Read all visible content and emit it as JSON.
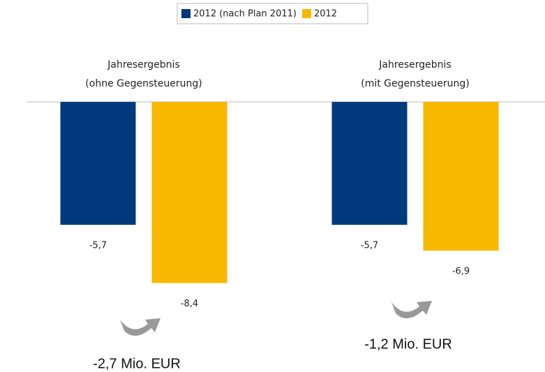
{
  "chart_data": {
    "type": "bar",
    "categories": [
      "Jahresergebnis\n(ohne Gegensteuerung)",
      "Jahresergebnis\n(mit Gegensteuerung)"
    ],
    "series": [
      {
        "name": "2012 (nach Plan 2011)",
        "color": "#003a7d",
        "values": [
          -5.7,
          -5.7
        ],
        "value_labels": [
          "-5,7",
          "-5,7"
        ]
      },
      {
        "name": "2012",
        "color": "#f9b800",
        "values": [
          -8.4,
          -6.9
        ],
        "value_labels": [
          "-8,4",
          "-6,9"
        ]
      }
    ],
    "annotations": [
      "-2,7 Mio. EUR",
      "-1,2 Mio. EUR"
    ]
  }
}
